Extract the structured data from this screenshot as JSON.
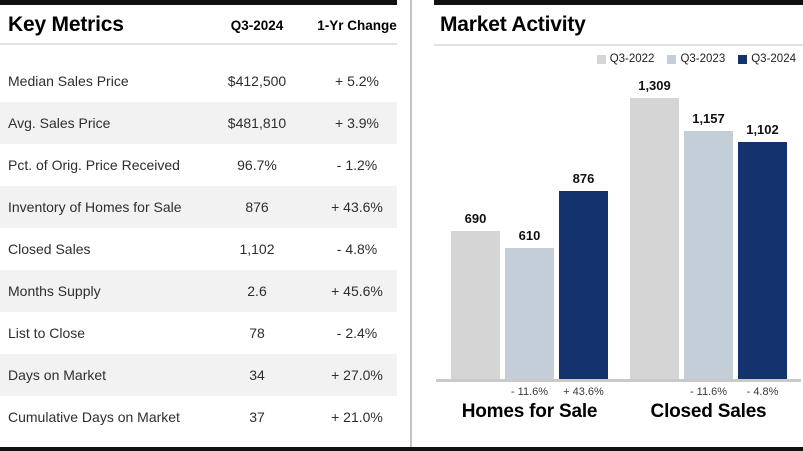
{
  "key_metrics": {
    "title": "Key Metrics",
    "columns": [
      "Q3-2024",
      "1-Yr Change"
    ],
    "rows": [
      {
        "label": "Median Sales Price",
        "value": "$412,500",
        "change": "+ 5.2%"
      },
      {
        "label": "Avg. Sales Price",
        "value": "$481,810",
        "change": "+ 3.9%"
      },
      {
        "label": "Pct. of Orig. Price Received",
        "value": "96.7%",
        "change": "- 1.2%"
      },
      {
        "label": "Inventory of Homes for Sale",
        "value": "876",
        "change": "+ 43.6%"
      },
      {
        "label": "Closed Sales",
        "value": "1,102",
        "change": "- 4.8%"
      },
      {
        "label": "Months Supply",
        "value": "2.6",
        "change": "+ 45.6%"
      },
      {
        "label": "List to Close",
        "value": "78",
        "change": "- 2.4%"
      },
      {
        "label": "Days on Market",
        "value": "34",
        "change": "+ 27.0%"
      },
      {
        "label": "Cumulative Days on Market",
        "value": "37",
        "change": "+ 21.0%"
      }
    ]
  },
  "market_activity": {
    "title": "Market Activity"
  },
  "chart_data": {
    "type": "bar",
    "title": "Market Activity",
    "categories": [
      "Homes for Sale",
      "Closed Sales"
    ],
    "series": [
      {
        "name": "Q3-2022",
        "color": "#d5d5d5",
        "values": [
          690,
          1309
        ],
        "labels": [
          "690",
          "1,309"
        ]
      },
      {
        "name": "Q3-2023",
        "color": "#c3ced9",
        "values": [
          610,
          1157
        ],
        "labels": [
          "610",
          "1,157"
        ]
      },
      {
        "name": "Q3-2024",
        "color": "#14336e",
        "values": [
          876,
          1102
        ],
        "labels": [
          "876",
          "1,102"
        ]
      }
    ],
    "change_labels": [
      [
        "",
        "- 11.6%",
        "+ 43.6%"
      ],
      [
        "",
        "- 11.6%",
        "- 4.8%"
      ]
    ],
    "ylim": [
      0,
      1309
    ],
    "grid": false,
    "legend_position": "top-right",
    "xlabel": "",
    "ylabel": ""
  },
  "colors": {
    "bar_q3_2022": "#d5d5d5",
    "bar_q3_2023": "#c3ced9",
    "bar_q3_2024": "#14336e",
    "row_stripe": "#f2f2f2",
    "rule_dark": "#111111",
    "rule_light": "#e2e2e2",
    "axis_line": "#c9c9c9"
  }
}
